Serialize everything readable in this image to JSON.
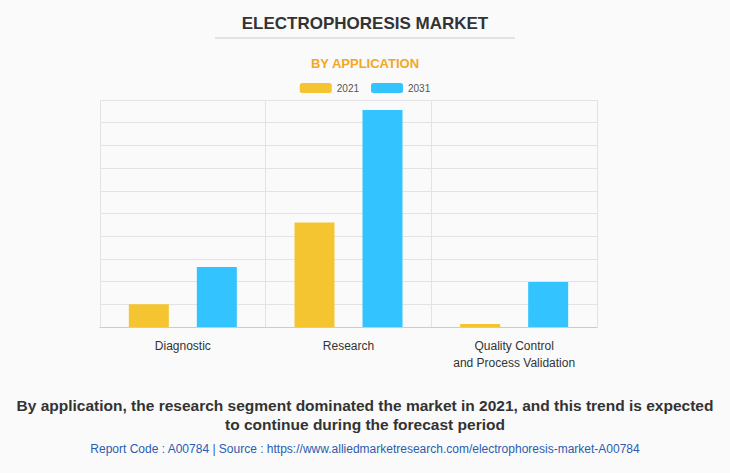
{
  "chart_data": {
    "type": "bar",
    "title": "ELECTROPHORESIS MARKET",
    "subtitle": "BY APPLICATION",
    "categories": [
      "Diagnostic",
      "Research",
      "Quality Control\nand Process Validation"
    ],
    "series": [
      {
        "name": "2021",
        "color": "#f5c531",
        "values": [
          1.0,
          4.6,
          0.13
        ]
      },
      {
        "name": "2031",
        "color": "#33c4ff",
        "values": [
          2.64,
          9.56,
          1.98
        ]
      }
    ],
    "ylim": [
      0,
      10
    ],
    "yticks": [
      0,
      1,
      2,
      3,
      4,
      5,
      6,
      7,
      8,
      9,
      10
    ],
    "grid": true,
    "tick_labels": "x",
    "legend": "top",
    "annotations": [
      "By application, the research segment dominated the market in 2021, and this trend is expected to continue during the forecast period",
      "Report Code : A00784  |  Source : https://www.alliedmarketresearch.com/electrophoresis-market-A00784"
    ]
  }
}
